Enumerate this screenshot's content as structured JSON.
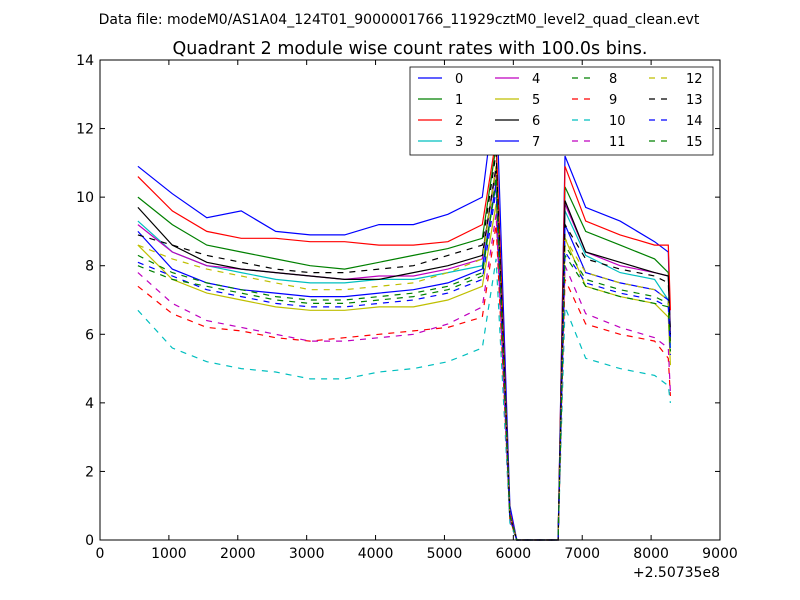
{
  "header": {
    "datafile": "Data file: modeM0/AS1A04_124T01_9000001766_11929cztM0_level2_quad_clean.evt"
  },
  "chart_data": {
    "type": "line",
    "title": "Quadrant 2 module wise count rates with 100.0s bins.",
    "xlabel": "",
    "ylabel": "",
    "x_offset_text": "+2.50735e8",
    "xlim": [
      0,
      9000
    ],
    "ylim": [
      0,
      14
    ],
    "xticks": [
      0,
      1000,
      2000,
      3000,
      4000,
      5000,
      6000,
      7000,
      8000,
      9000
    ],
    "yticks": [
      0,
      2,
      4,
      6,
      8,
      10,
      12,
      14
    ],
    "grid": false,
    "legend_position": "top-right",
    "legend_columns": 4,
    "x": [
      550,
      1050,
      1550,
      2050,
      2550,
      3050,
      3550,
      4050,
      4550,
      5050,
      5550,
      5750,
      5950,
      6050,
      6650,
      6750,
      7050,
      7550,
      8050,
      8250,
      8280
    ],
    "series": [
      {
        "name": "0",
        "color": "#0000ff",
        "dash": false,
        "values": [
          10.9,
          10.1,
          9.4,
          9.6,
          9.0,
          8.9,
          8.9,
          9.2,
          9.2,
          9.5,
          10.0,
          13.2,
          1.0,
          0,
          0,
          11.2,
          9.7,
          9.3,
          8.7,
          8.4,
          6.0
        ]
      },
      {
        "name": "1",
        "color": "#008000",
        "dash": false,
        "values": [
          10.0,
          9.2,
          8.6,
          8.4,
          8.2,
          8.0,
          7.9,
          8.1,
          8.3,
          8.5,
          8.8,
          11.5,
          0.8,
          0,
          0,
          10.3,
          9.0,
          8.6,
          8.2,
          7.8,
          5.9
        ]
      },
      {
        "name": "2",
        "color": "#ff0000",
        "dash": false,
        "values": [
          10.6,
          9.6,
          9.0,
          8.8,
          8.8,
          8.7,
          8.7,
          8.6,
          8.6,
          8.7,
          9.2,
          11.7,
          0.8,
          0,
          0,
          10.9,
          9.3,
          8.9,
          8.6,
          8.6,
          6.7
        ]
      },
      {
        "name": "3",
        "color": "#00bfbf",
        "dash": false,
        "values": [
          9.3,
          8.4,
          8.0,
          7.8,
          7.6,
          7.5,
          7.5,
          7.6,
          7.6,
          7.8,
          8.0,
          10.4,
          0.7,
          0,
          0,
          9.6,
          8.3,
          7.8,
          7.6,
          7.0,
          5.6
        ]
      },
      {
        "name": "4",
        "color": "#bf00bf",
        "dash": false,
        "values": [
          9.2,
          8.4,
          8.0,
          7.9,
          7.8,
          7.7,
          7.6,
          7.7,
          7.7,
          7.9,
          8.2,
          10.8,
          0.7,
          0,
          0,
          9.8,
          8.4,
          8.0,
          7.8,
          7.7,
          6.0
        ]
      },
      {
        "name": "5",
        "color": "#bfbf00",
        "dash": false,
        "values": [
          8.6,
          7.6,
          7.2,
          7.0,
          6.8,
          6.7,
          6.7,
          6.8,
          6.8,
          7.0,
          7.4,
          9.8,
          0.6,
          0,
          0,
          8.8,
          7.4,
          7.1,
          6.9,
          6.5,
          5.1
        ]
      },
      {
        "name": "6",
        "color": "#000000",
        "dash": false,
        "values": [
          9.7,
          8.6,
          8.1,
          7.9,
          7.8,
          7.7,
          7.6,
          7.6,
          7.8,
          8.0,
          8.3,
          10.9,
          0.7,
          0,
          0,
          9.9,
          8.4,
          8.1,
          7.8,
          7.7,
          5.8
        ]
      },
      {
        "name": "7",
        "color": "#0000ff",
        "dash": false,
        "values": [
          9.0,
          7.9,
          7.5,
          7.3,
          7.2,
          7.1,
          7.1,
          7.2,
          7.3,
          7.5,
          7.9,
          10.4,
          0.7,
          0,
          0,
          9.2,
          7.8,
          7.5,
          7.3,
          7.0,
          5.9
        ]
      },
      {
        "name": "8",
        "color": "#008000",
        "dash": true,
        "values": [
          8.3,
          7.8,
          7.5,
          7.3,
          7.1,
          7.0,
          7.0,
          7.1,
          7.2,
          7.4,
          7.8,
          10.5,
          0.7,
          0,
          0,
          8.6,
          7.6,
          7.3,
          7.1,
          6.9,
          5.5
        ]
      },
      {
        "name": "9",
        "color": "#ff0000",
        "dash": true,
        "values": [
          7.4,
          6.6,
          6.2,
          6.1,
          5.9,
          5.8,
          5.9,
          6.0,
          6.1,
          6.2,
          6.5,
          9.2,
          0.6,
          0,
          0,
          7.6,
          6.3,
          6.0,
          5.8,
          5.3,
          4.2
        ]
      },
      {
        "name": "10",
        "color": "#00bfbf",
        "dash": true,
        "values": [
          6.7,
          5.6,
          5.2,
          5.0,
          4.9,
          4.7,
          4.7,
          4.9,
          5.0,
          5.2,
          5.6,
          8.2,
          0.5,
          0,
          0,
          6.8,
          5.3,
          5.0,
          4.8,
          4.5,
          4.0
        ]
      },
      {
        "name": "11",
        "color": "#bf00bf",
        "dash": true,
        "values": [
          7.8,
          6.9,
          6.4,
          6.2,
          6.0,
          5.8,
          5.8,
          5.9,
          6.0,
          6.3,
          6.8,
          9.5,
          0.6,
          0,
          0,
          8.0,
          6.6,
          6.2,
          5.9,
          5.6,
          4.3
        ]
      },
      {
        "name": "12",
        "color": "#bfbf00",
        "dash": true,
        "values": [
          8.6,
          8.2,
          7.9,
          7.7,
          7.5,
          7.3,
          7.3,
          7.4,
          7.5,
          7.8,
          8.2,
          10.9,
          0.7,
          0,
          0,
          8.8,
          7.8,
          7.5,
          7.3,
          7.0,
          5.6
        ]
      },
      {
        "name": "13",
        "color": "#000000",
        "dash": true,
        "values": [
          8.9,
          8.6,
          8.3,
          8.1,
          7.9,
          7.8,
          7.8,
          7.9,
          8.0,
          8.3,
          8.6,
          11.3,
          0.7,
          0,
          0,
          9.2,
          8.2,
          7.9,
          7.7,
          7.5,
          6.0
        ]
      },
      {
        "name": "14",
        "color": "#0000ff",
        "dash": true,
        "values": [
          8.1,
          7.7,
          7.3,
          7.1,
          6.9,
          6.8,
          6.8,
          6.9,
          7.0,
          7.2,
          7.6,
          10.2,
          0.7,
          0,
          0,
          8.4,
          7.5,
          7.2,
          7.0,
          6.8,
          5.4
        ]
      },
      {
        "name": "15",
        "color": "#008000",
        "dash": true,
        "values": [
          8.0,
          7.6,
          7.4,
          7.2,
          7.0,
          6.9,
          6.9,
          7.0,
          7.1,
          7.3,
          7.7,
          10.6,
          0.7,
          0,
          0,
          8.3,
          7.4,
          7.1,
          6.9,
          6.8,
          5.5
        ]
      }
    ]
  }
}
